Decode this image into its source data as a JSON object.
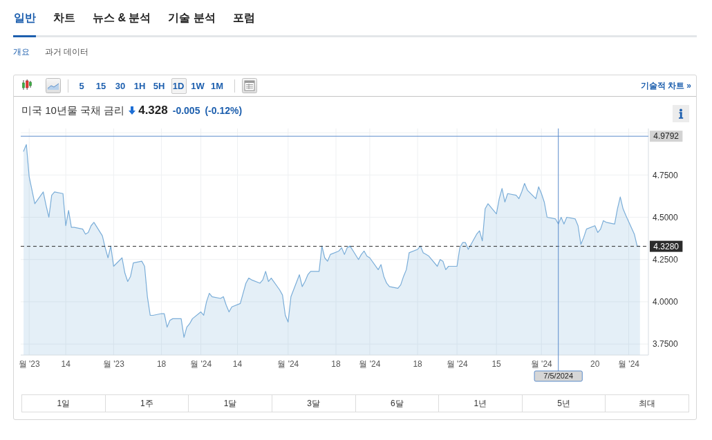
{
  "chart_data": {
    "type": "area",
    "title": "미국 10년물 국채 금리",
    "annotations": [
      "일반",
      "차트",
      "뉴스 & 분석",
      "기술 분석",
      "포럼",
      "개요",
      "과거 데이터",
      "5",
      "15",
      "30",
      "1H",
      "5H",
      "1D",
      "1W",
      "1M",
      "기술적 차트 »",
      "4.328",
      "-0.005",
      "(-0.12%)",
      "1일",
      "1주",
      "1달",
      "3달",
      "6달",
      "1년",
      "5년",
      "최대"
    ],
    "x": [
      "2023-10-30",
      "2023-10-31",
      "2023-11-01",
      "2023-11-02",
      "2023-11-03",
      "2023-11-06",
      "2023-11-07",
      "2023-11-08",
      "2023-11-09",
      "2023-11-10",
      "2023-11-13",
      "2023-11-14",
      "2023-11-15",
      "2023-11-16",
      "2023-11-17",
      "2023-11-20",
      "2023-11-21",
      "2023-11-22",
      "2023-11-23",
      "2023-11-24",
      "2023-11-27",
      "2023-11-28",
      "2023-11-29",
      "2023-11-30",
      "2023-12-01",
      "2023-12-04",
      "2023-12-05",
      "2023-12-06",
      "2023-12-07",
      "2023-12-08",
      "2023-12-11",
      "2023-12-12",
      "2023-12-13",
      "2023-12-14",
      "2023-12-15",
      "2023-12-18",
      "2023-12-19",
      "2023-12-20",
      "2023-12-21",
      "2023-12-22",
      "2023-12-25",
      "2023-12-26",
      "2023-12-27",
      "2023-12-28",
      "2023-12-29",
      "2024-01-01",
      "2024-01-02",
      "2024-01-03",
      "2024-01-04",
      "2024-01-05",
      "2024-01-08",
      "2024-01-09",
      "2024-01-10",
      "2024-01-11",
      "2024-01-12",
      "2024-01-15",
      "2024-01-16",
      "2024-01-17",
      "2024-01-18",
      "2024-01-19",
      "2024-01-22",
      "2024-01-23",
      "2024-01-24",
      "2024-01-25",
      "2024-01-26",
      "2024-01-29",
      "2024-01-30",
      "2024-01-31",
      "2024-02-01",
      "2024-02-02",
      "2024-02-05",
      "2024-02-06",
      "2024-02-07",
      "2024-02-08",
      "2024-02-09",
      "2024-02-12",
      "2024-02-13",
      "2024-02-14",
      "2024-02-15",
      "2024-02-16",
      "2024-02-19",
      "2024-02-20",
      "2024-02-21",
      "2024-02-22",
      "2024-02-23",
      "2024-02-26",
      "2024-02-27",
      "2024-02-28",
      "2024-02-29",
      "2024-03-01",
      "2024-03-04",
      "2024-03-05",
      "2024-03-06",
      "2024-03-07",
      "2024-03-08",
      "2024-03-11",
      "2024-03-12",
      "2024-03-13",
      "2024-03-14",
      "2024-03-15",
      "2024-03-18",
      "2024-03-19",
      "2024-03-20",
      "2024-03-21",
      "2024-03-22",
      "2024-03-25",
      "2024-03-26",
      "2024-03-27",
      "2024-03-28",
      "2024-03-29",
      "2024-04-01",
      "2024-04-02",
      "2024-04-03",
      "2024-04-04",
      "2024-04-05",
      "2024-04-08",
      "2024-04-09",
      "2024-04-10",
      "2024-04-11",
      "2024-04-12",
      "2024-04-15",
      "2024-04-16",
      "2024-04-17",
      "2024-04-18",
      "2024-04-19",
      "2024-04-22",
      "2024-04-23",
      "2024-04-24",
      "2024-04-25",
      "2024-04-26",
      "2024-04-29",
      "2024-04-30",
      "2024-05-01",
      "2024-05-02",
      "2024-05-03",
      "2024-05-06",
      "2024-05-07",
      "2024-05-08",
      "2024-05-09",
      "2024-05-10",
      "2024-05-13",
      "2024-05-14",
      "2024-05-15",
      "2024-05-16",
      "2024-05-17",
      "2024-05-20",
      "2024-05-21",
      "2024-05-22",
      "2024-05-23",
      "2024-05-24",
      "2024-05-27",
      "2024-05-28",
      "2024-05-29",
      "2024-05-30",
      "2024-05-31",
      "2024-06-03",
      "2024-06-04",
      "2024-06-05"
    ],
    "values": [
      4.89,
      4.93,
      4.74,
      4.66,
      4.58,
      4.65,
      4.57,
      4.5,
      4.63,
      4.65,
      4.64,
      4.45,
      4.54,
      4.44,
      4.44,
      4.43,
      4.4,
      4.41,
      4.45,
      4.47,
      4.39,
      4.32,
      4.26,
      4.33,
      4.21,
      4.26,
      4.17,
      4.12,
      4.15,
      4.23,
      4.24,
      4.21,
      4.03,
      3.92,
      3.92,
      3.93,
      3.93,
      3.85,
      3.89,
      3.9,
      3.9,
      3.79,
      3.85,
      3.87,
      3.9,
      3.94,
      3.92,
      4.0,
      4.05,
      4.03,
      4.02,
      4.03,
      3.98,
      3.94,
      3.97,
      3.99,
      4.05,
      4.11,
      4.14,
      4.13,
      4.11,
      4.13,
      4.18,
      4.12,
      4.14,
      4.07,
      4.04,
      3.92,
      3.88,
      4.03,
      4.16,
      4.09,
      4.12,
      4.16,
      4.18,
      4.18,
      4.33,
      4.26,
      4.24,
      4.28,
      4.3,
      4.32,
      4.28,
      4.32,
      4.33,
      4.25,
      4.28,
      4.3,
      4.27,
      4.26,
      4.19,
      4.22,
      4.15,
      4.11,
      4.09,
      4.08,
      4.1,
      4.15,
      4.19,
      4.29,
      4.31,
      4.33,
      4.29,
      4.28,
      4.27,
      4.21,
      4.25,
      4.24,
      4.19,
      4.21,
      4.21,
      4.32,
      4.35,
      4.35,
      4.31,
      4.4,
      4.42,
      4.36,
      4.55,
      4.58,
      4.52,
      4.61,
      4.67,
      4.59,
      4.64,
      4.63,
      4.61,
      4.65,
      4.7,
      4.66,
      4.61,
      4.68,
      4.64,
      4.59,
      4.5,
      4.49,
      4.46,
      4.5,
      4.46,
      4.5,
      4.49,
      4.45,
      4.34,
      4.38,
      4.43,
      4.45,
      4.41,
      4.43,
      4.48,
      4.47,
      4.46,
      4.55,
      4.62,
      4.55,
      4.51,
      4.4,
      4.33,
      4.328
    ],
    "color": "#7aadd8",
    "xlim": [
      "2023-10-29",
      "2024-06-08"
    ],
    "xticks": [
      {
        "value": "2023-11-01",
        "label": "월 '23"
      },
      {
        "value": "2023-11-14",
        "label": "14"
      },
      {
        "value": "2023-12-01",
        "label": "월 '23"
      },
      {
        "value": "2023-12-18",
        "label": "18"
      },
      {
        "value": "2024-01-01",
        "label": "월 '24"
      },
      {
        "value": "2024-01-14",
        "label": "14"
      },
      {
        "value": "2024-02-01",
        "label": "월 '24"
      },
      {
        "value": "2024-02-18",
        "label": "18"
      },
      {
        "value": "2024-03-01",
        "label": "월 '24"
      },
      {
        "value": "2024-03-18",
        "label": "18"
      },
      {
        "value": "2024-04-01",
        "label": "월 '24"
      },
      {
        "value": "2024-04-15",
        "label": "15"
      },
      {
        "value": "2024-05-01",
        "label": "월 '24"
      },
      {
        "value": "2024-05-20",
        "label": "20"
      },
      {
        "value": "2024-06-01",
        "label": "월 '24"
      }
    ],
    "ylim": [
      3.685,
      5.025
    ],
    "yticks": [
      {
        "value": 3.75,
        "label": "3.7500"
      },
      {
        "value": 4,
        "label": "4.0000"
      },
      {
        "value": 4.25,
        "label": "4.2500"
      },
      {
        "value": 4.5,
        "label": "4.5000"
      },
      {
        "value": 4.75,
        "label": "4.7500"
      },
      {
        "value": 5,
        "label": null
      }
    ],
    "grid": true,
    "ref_lines": [
      {
        "axis": "y",
        "value": 4.328,
        "label": "4.3280",
        "color": "#2b2b2b",
        "line_style": "dashed"
      },
      {
        "axis": "y",
        "value": 4.9792,
        "label": "4.9792",
        "color": "#5b8ccb",
        "line_style": "solid"
      },
      {
        "axis": "x",
        "value": "2024-05-07",
        "label": "7/5/2024",
        "color": "#5b8ccb",
        "line_style": "solid"
      }
    ]
  }
}
